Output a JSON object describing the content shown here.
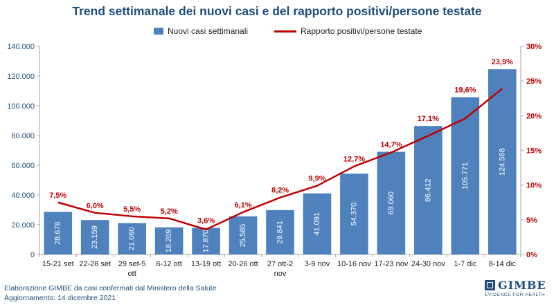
{
  "chart_data": {
    "type": "bar",
    "title": "Trend settimanale dei nuovi casi e del rapporto positivi/persone testate",
    "categories": [
      "15-21 set",
      "22-28 set",
      "29 set-5 ott",
      "6-12 ott",
      "13-19 ott",
      "20-26 ott",
      "27 ott-2 nov",
      "3-9 nov",
      "10-16 nov",
      "17-23 nov",
      "24-30 nov",
      "1-7 dic",
      "8-14 dic"
    ],
    "series": [
      {
        "name": "Nuovi casi settimanali",
        "type": "bar",
        "axis": "left",
        "values": [
          28676,
          23159,
          21060,
          18209,
          17870,
          25585,
          29841,
          41091,
          54370,
          69060,
          86412,
          105771,
          124568
        ],
        "labels": [
          "28.676",
          "23.159",
          "21.060",
          "18.209",
          "17.870",
          "25.585",
          "29.841",
          "41.091",
          "54.370",
          "69.060",
          "86.412",
          "105.771",
          "124.568"
        ],
        "color": "#4f81bd"
      },
      {
        "name": "Rapporto positivi/persone testate",
        "type": "line",
        "axis": "right",
        "values": [
          7.5,
          6.0,
          5.5,
          5.2,
          3.6,
          6.1,
          8.2,
          9.9,
          12.7,
          14.7,
          17.1,
          19.6,
          23.9
        ],
        "labels": [
          "7,5%",
          "6,0%",
          "5,5%",
          "5,2%",
          "3,6%",
          "6,1%",
          "8,2%",
          "9,9%",
          "12,7%",
          "14,7%",
          "17,1%",
          "19,6%",
          "23,9%"
        ],
        "color": "#c00000"
      }
    ],
    "y_left": {
      "range": [
        0,
        140000
      ],
      "ticks": [
        0,
        20000,
        40000,
        60000,
        80000,
        100000,
        120000,
        140000
      ],
      "tick_labels": [
        "0",
        "20.000",
        "40.000",
        "60.000",
        "80.000",
        "100.000",
        "120.000",
        "140.000"
      ],
      "color": "#1f4e79"
    },
    "y_right": {
      "range": [
        0,
        30
      ],
      "ticks": [
        0,
        5,
        10,
        15,
        20,
        25,
        30
      ],
      "tick_labels": [
        "0%",
        "5%",
        "10%",
        "15%",
        "20%",
        "25%",
        "30%"
      ],
      "color": "#c00000"
    },
    "grid": false,
    "legend_position": "top"
  },
  "footer": {
    "line1": "Elaborazione GIMBE da casi confermati dal Ministero della Salute",
    "line2": "Aggiornamento: 14 dicembre 2021"
  },
  "logo": {
    "name": "GIMBE",
    "tagline": "EVIDENCE FOR HEALTH"
  }
}
